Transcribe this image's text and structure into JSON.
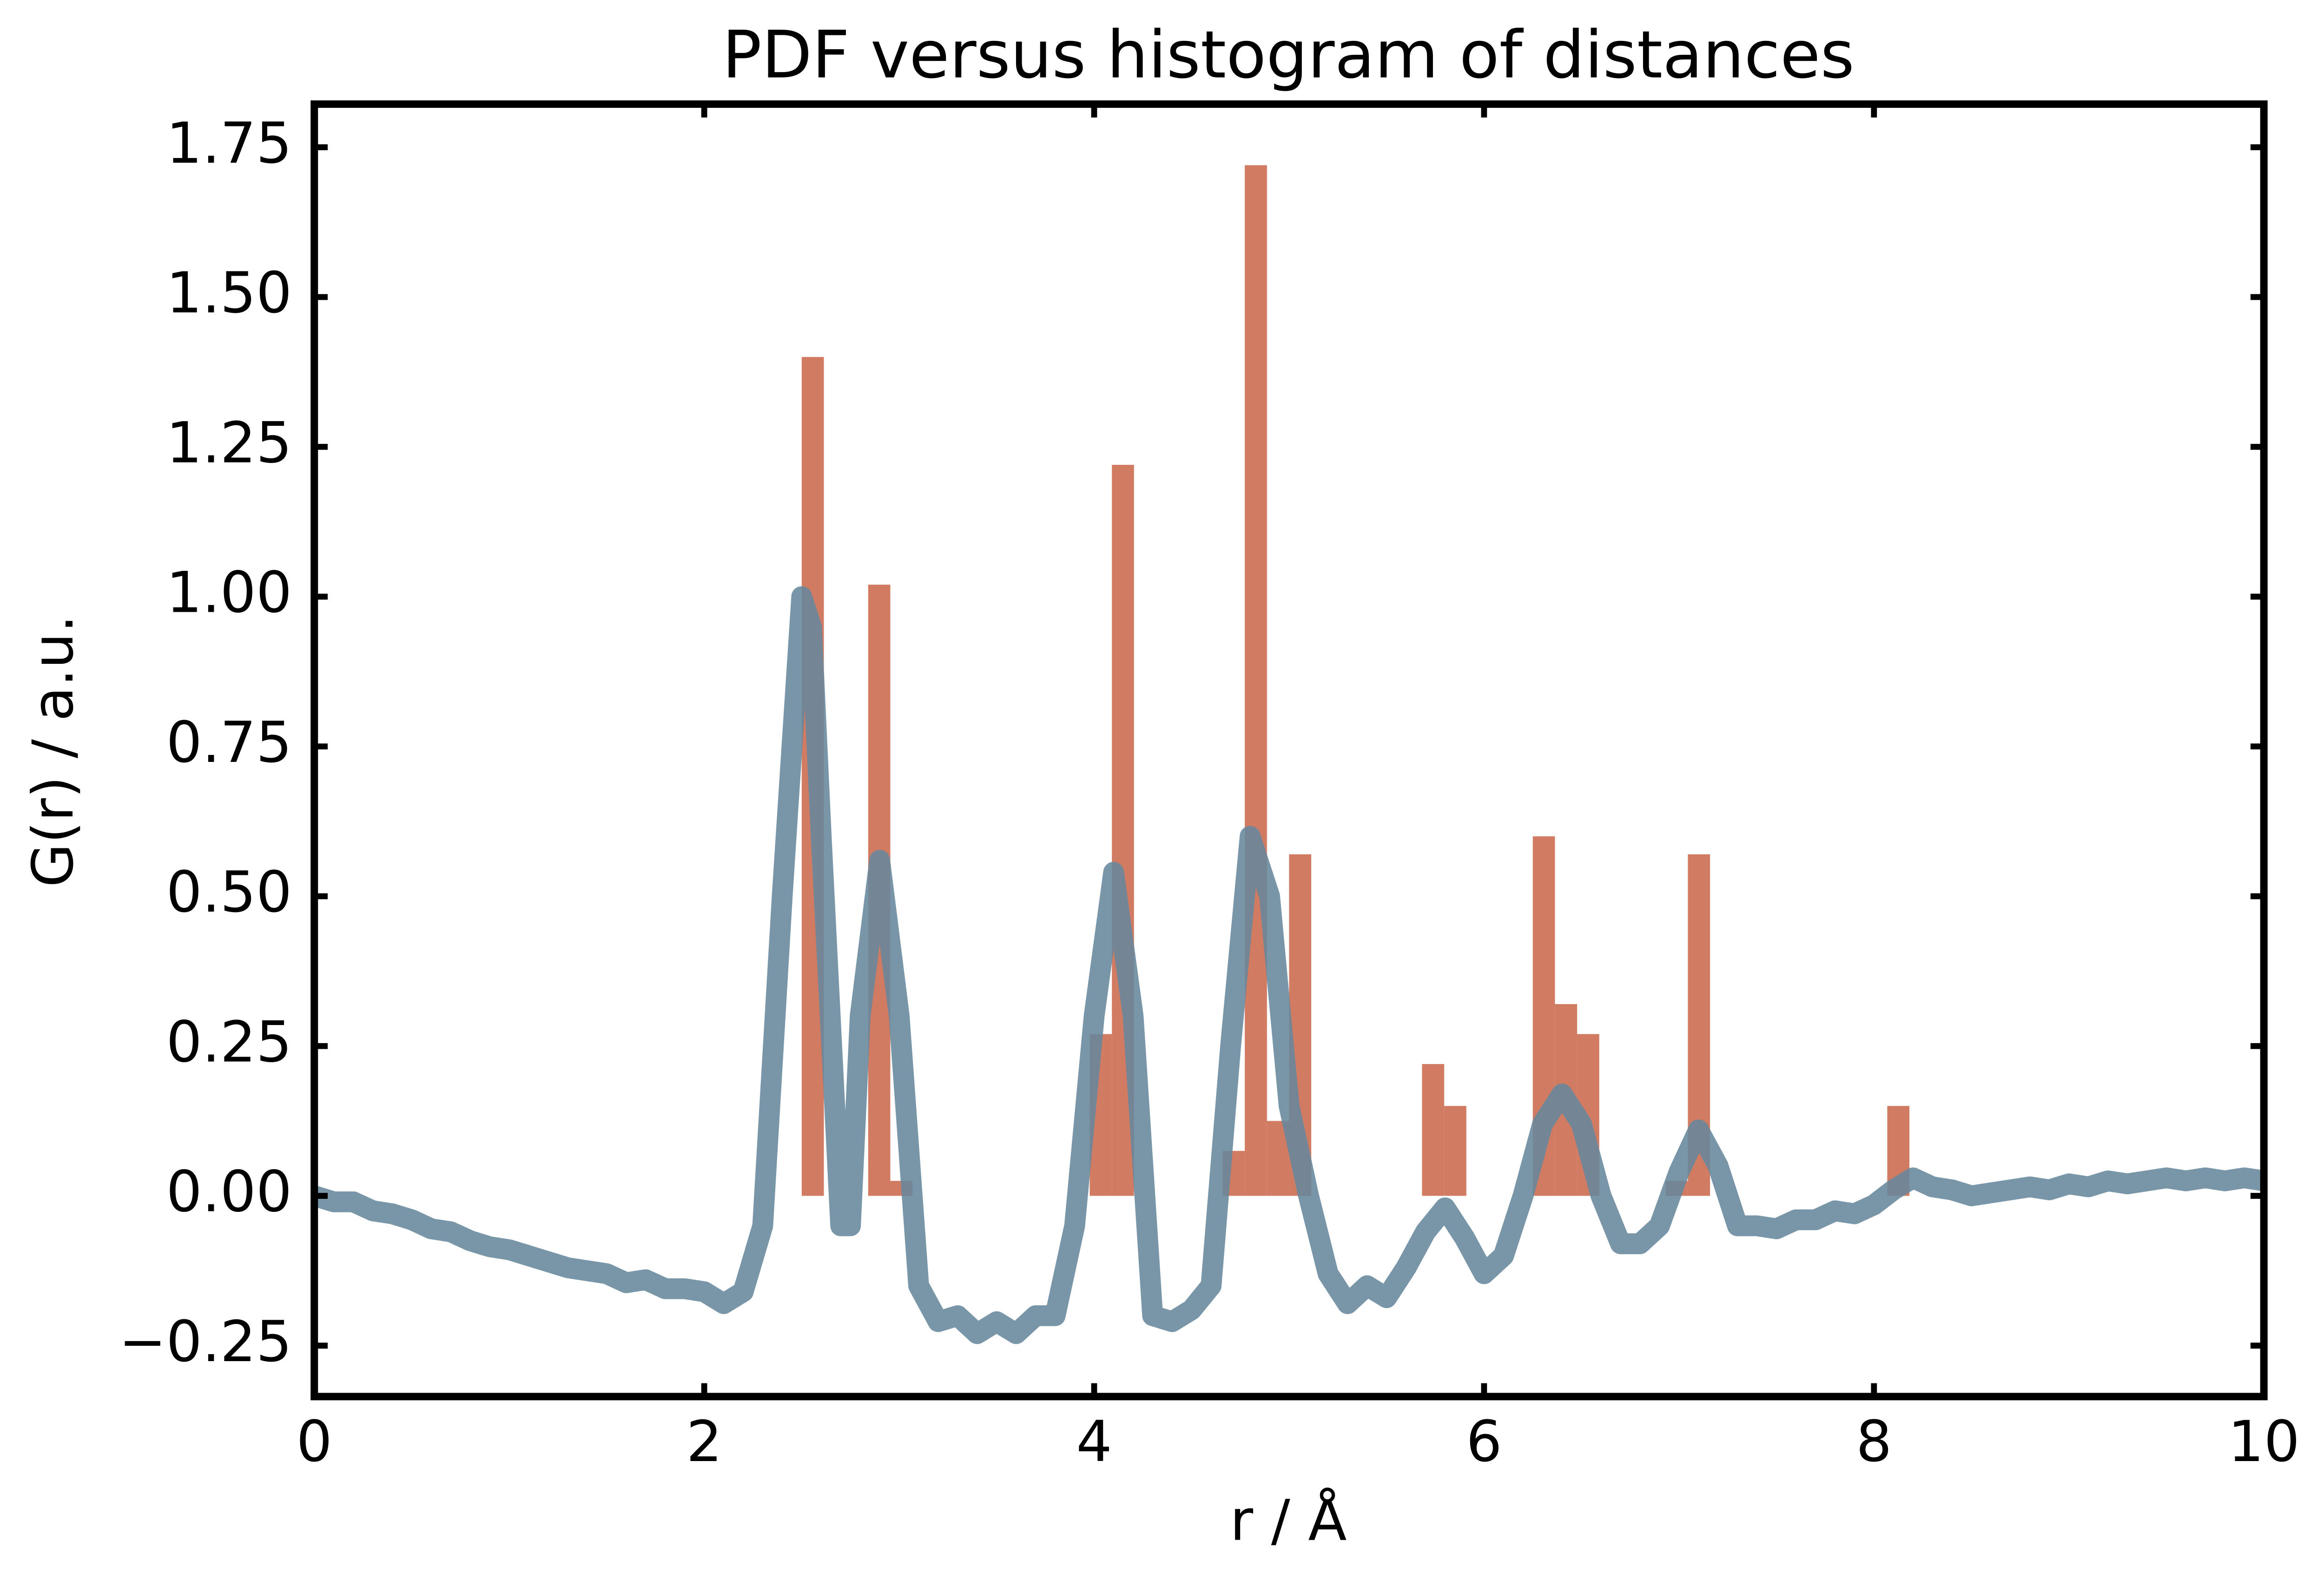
{
  "chart_data": [
    {
      "type": "histogram",
      "title": "PDF versus histogram of distances",
      "x_label": "r / Å",
      "y_label": "G(r) / a.u.",
      "color": "#d27b63",
      "bins": [
        2.5,
        2.6136,
        2.7273,
        2.8409,
        2.9545,
        3.0682,
        3.1818,
        3.2955,
        3.4091,
        3.5227,
        3.6364,
        3.75,
        3.8636,
        3.9773,
        4.0909,
        4.2045,
        4.3182,
        4.4318,
        4.5455,
        4.6591,
        4.7727,
        4.8864,
        5.0,
        5.1136,
        5.2273,
        5.3409,
        5.4545,
        5.5682,
        5.6818,
        5.7955,
        5.9091,
        6.0227,
        6.1364,
        6.25,
        6.3636,
        6.4773,
        6.5909,
        6.7045,
        6.8182,
        6.9318,
        7.0455,
        7.1591,
        7.2727,
        7.3864,
        7.5,
        7.6136,
        7.7273,
        7.8409,
        7.9545,
        8.0682,
        8.1818
      ],
      "values": [
        1.4,
        0,
        0,
        1.02,
        0.025,
        0,
        0,
        0,
        0,
        0,
        0,
        0,
        0,
        0.27,
        1.22,
        0,
        0,
        0,
        0,
        0.075,
        1.72,
        0.125,
        0.57,
        0,
        0,
        0,
        0,
        0,
        0.22,
        0.15,
        0,
        0,
        0,
        0.6,
        0.32,
        0.27,
        0,
        0,
        0,
        0.025,
        0.57,
        0,
        0,
        0,
        0,
        0,
        0,
        0,
        0,
        0.15
      ],
      "xlim": [
        0,
        10
      ],
      "ylim": [
        -0.335,
        1.822
      ],
      "xticks": [
        0,
        2,
        4,
        6,
        8,
        10
      ],
      "yticks": [
        {
          "value": -0.25,
          "label": "−0.25"
        },
        {
          "value": 0,
          "label": "0.00"
        },
        0.25,
        {
          "value": 0.5,
          "label": "0.50"
        },
        0.75,
        {
          "value": 1,
          "label": "1.00"
        },
        1.25,
        {
          "value": 1.5,
          "label": "1.50"
        },
        1.75
      ]
    },
    {
      "type": "line",
      "color": "#66879c",
      "x": [
        0,
        0.1,
        0.2,
        0.3,
        0.4,
        0.5,
        0.6,
        0.7,
        0.8,
        0.9,
        1.0,
        1.1,
        1.2,
        1.3,
        1.4,
        1.5,
        1.6,
        1.7,
        1.8,
        1.9,
        2.0,
        2.1,
        2.2,
        2.3,
        2.4,
        2.5,
        2.55,
        2.6,
        2.7,
        2.75,
        2.8,
        2.9,
        3.0,
        3.1,
        3.2,
        3.3,
        3.4,
        3.5,
        3.6,
        3.7,
        3.8,
        3.9,
        4.0,
        4.1,
        4.2,
        4.3,
        4.4,
        4.5,
        4.6,
        4.7,
        4.8,
        4.9,
        5.0,
        5.1,
        5.2,
        5.3,
        5.4,
        5.5,
        5.6,
        5.7,
        5.8,
        5.9,
        6.0,
        6.1,
        6.2,
        6.3,
        6.4,
        6.5,
        6.6,
        6.7,
        6.8,
        6.9,
        7.0,
        7.1,
        7.2,
        7.3,
        7.4,
        7.5,
        7.6,
        7.7,
        7.8,
        7.9,
        8.0,
        8.1,
        8.2,
        8.3,
        8.4,
        8.5,
        8.6,
        8.7,
        8.8,
        8.9,
        9.0,
        9.1,
        9.2,
        9.3,
        9.4,
        9.5,
        9.6,
        9.7,
        9.8,
        9.9,
        10.0
      ],
      "values": [
        0.0,
        -0.01,
        -0.01,
        -0.025,
        -0.03,
        -0.04,
        -0.055,
        -0.06,
        -0.075,
        -0.085,
        -0.09,
        -0.1,
        -0.11,
        -0.12,
        -0.125,
        -0.13,
        -0.145,
        -0.14,
        -0.155,
        -0.155,
        -0.16,
        -0.18,
        -0.16,
        -0.05,
        0.5,
        1.0,
        0.95,
        0.6,
        -0.05,
        -0.05,
        0.3,
        0.56,
        0.3,
        -0.15,
        -0.21,
        -0.2,
        -0.23,
        -0.21,
        -0.23,
        -0.2,
        -0.2,
        -0.05,
        0.3,
        0.54,
        0.3,
        -0.2,
        -0.21,
        -0.19,
        -0.15,
        0.25,
        0.6,
        0.5,
        0.15,
        0.0,
        -0.13,
        -0.18,
        -0.15,
        -0.17,
        -0.12,
        -0.06,
        -0.02,
        -0.07,
        -0.13,
        -0.1,
        0.0,
        0.12,
        0.17,
        0.12,
        0.0,
        -0.08,
        -0.08,
        -0.05,
        0.04,
        0.11,
        0.05,
        -0.05,
        -0.05,
        -0.055,
        -0.04,
        -0.04,
        -0.025,
        -0.03,
        -0.015,
        0.01,
        0.03,
        0.015,
        0.01,
        0.0,
        0.005,
        0.01,
        0.015,
        0.01,
        0.02,
        0.015,
        0.025,
        0.02,
        0.025,
        0.03,
        0.025,
        0.03,
        0.025,
        0.03,
        0.025
      ]
    }
  ]
}
